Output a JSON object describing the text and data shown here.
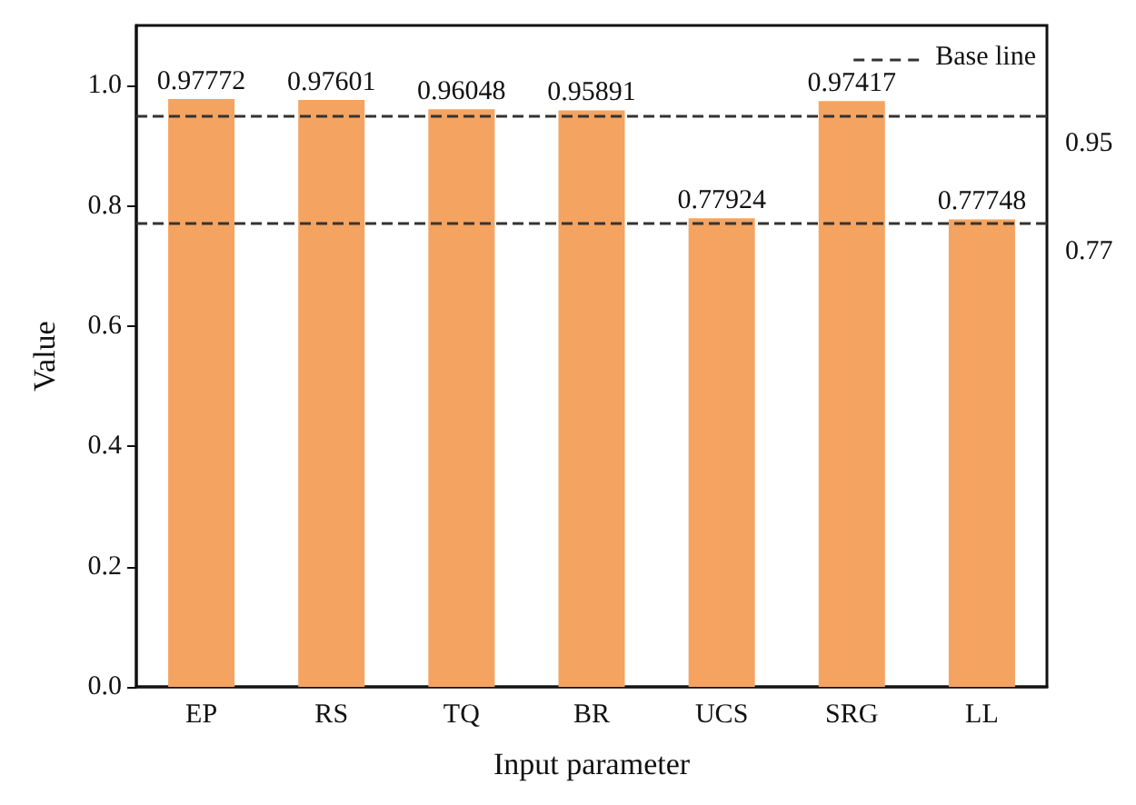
{
  "chart_data": {
    "type": "bar",
    "xlabel": "Input parameter",
    "ylabel": "Value",
    "categories": [
      "EP",
      "RS",
      "TQ",
      "BR",
      "UCS",
      "SRG",
      "LL"
    ],
    "values": [
      0.97772,
      0.97601,
      0.96048,
      0.95891,
      0.77924,
      0.97417,
      0.77748
    ],
    "color": "#f4a361",
    "data_labels": true,
    "ylim": [
      0,
      1.1
    ],
    "yticks": [
      "0.0",
      "0.2",
      "0.4",
      "0.6",
      "0.8",
      "1.0"
    ],
    "ref_lines": [
      {
        "axis": "y",
        "value": 0.95,
        "label": "0.95",
        "line_style": "dashed",
        "color": "#333333"
      },
      {
        "axis": "y",
        "value": 0.77,
        "label": "0.77",
        "line_style": "dashed",
        "color": "#333333"
      }
    ],
    "annotations": [
      "Base line"
    ],
    "grid": false
  }
}
